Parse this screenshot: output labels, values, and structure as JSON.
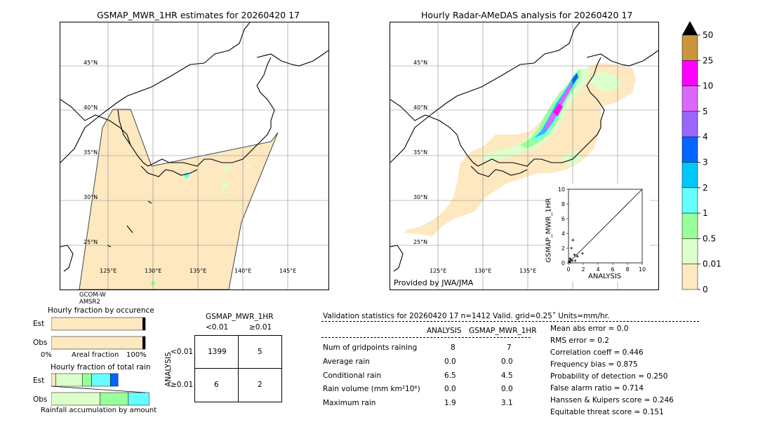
{
  "left_map": {
    "title": "GSMAP_MWR_1HR estimates for 20260420 17",
    "lat_labels": [
      "45°N",
      "40°N",
      "35°N",
      "30°N",
      "25°N"
    ],
    "lon_labels": [
      "125°E",
      "130°E",
      "135°E",
      "140°E",
      "145°E"
    ],
    "sensors": [
      "GCOM-W",
      "AMSR2"
    ]
  },
  "right_map": {
    "title": "Hourly Radar-AMeDAS analysis for 20260420 17",
    "lat_labels": [
      "45°N",
      "40°N",
      "35°N",
      "30°N",
      "25°N"
    ],
    "lon_labels": [
      "125°E",
      "130°E",
      "135°E"
    ],
    "credit": "Provided by JWA/JMA"
  },
  "colorbar": {
    "levels": [
      "50",
      "25",
      "10",
      "5",
      "4",
      "3",
      "2",
      "1",
      "0.5",
      "0.01",
      "0"
    ],
    "colors": [
      "#c8963c",
      "#ff00ff",
      "#dd66ff",
      "#9966ff",
      "#0066ff",
      "#00c8ff",
      "#66ffff",
      "#99ff99",
      "#ddffcc",
      "#fde8c0"
    ]
  },
  "scatter": {
    "xlabel": "ANALYSIS",
    "ylabel": "GSMAP_MWR_1HR",
    "xticks": [
      "0",
      "2",
      "4",
      "6",
      "8",
      "10"
    ],
    "yticks": [
      "0",
      "2",
      "4",
      "6",
      "8",
      "10"
    ]
  },
  "occurrence": {
    "title": "Hourly fraction by occurence",
    "row_labels": [
      "Est",
      "Obs"
    ],
    "axis_left": "0%",
    "axis_mid": "Areal fraction",
    "axis_right": "100%"
  },
  "total_rain": {
    "title": "Hourly fraction of total rain",
    "row_labels": [
      "Est",
      "Obs"
    ],
    "axis_mid": "Rainfall accumulation by amount"
  },
  "contingency": {
    "title": "GSMAP_MWR_1HR",
    "col_labels": [
      "<0.01",
      "≥0.01"
    ],
    "row_axis": "ANALYSIS",
    "row_labels": [
      "<0.01",
      "≥0.01"
    ],
    "cells": [
      "1399",
      "5",
      "6",
      "2"
    ]
  },
  "validation": {
    "header": "Validation statistics for 20260420 17  n=1412 Valid. grid=0.25˚ Units=mm/hr.",
    "col_analysis": "ANALYSIS",
    "col_gsmap": "GSMAP_MWR_1HR",
    "rows": [
      {
        "label": "Num of gridpoints raining",
        "a": "8",
        "g": "7"
      },
      {
        "label": "Average rain",
        "a": "0.0",
        "g": "0.0"
      },
      {
        "label": "Conditional rain",
        "a": "6.5",
        "g": "4.5"
      },
      {
        "label": "Rain volume (mm km²10⁶)",
        "a": "0.0",
        "g": "0.0"
      },
      {
        "label": "Maximum rain",
        "a": "1.9",
        "g": "3.1"
      }
    ],
    "scores": [
      "Mean abs error =    0.0",
      "RMS error =    0.2",
      "Correlation coeff =  0.446",
      "Frequency bias =  0.875",
      "Probability of detection =  0.250",
      "False alarm ratio =  0.714",
      "Hanssen & Kuipers score =  0.246",
      "Equitable threat score =  0.151"
    ]
  },
  "chart_data": [
    {
      "type": "scatter",
      "title": "",
      "xlabel": "ANALYSIS",
      "ylabel": "GSMAP_MWR_1HR",
      "xlim": [
        0,
        10
      ],
      "ylim": [
        0,
        10
      ],
      "points": [
        [
          0.1,
          0.2
        ],
        [
          0.2,
          0.1
        ],
        [
          0.3,
          0.4
        ],
        [
          0.5,
          0.3
        ],
        [
          0.8,
          1.1
        ],
        [
          1.2,
          0.9
        ],
        [
          0.4,
          2.0
        ],
        [
          0.6,
          3.1
        ],
        [
          1.9,
          1.3
        ],
        [
          0.2,
          0.6
        ],
        [
          0.9,
          0.3
        ]
      ]
    },
    {
      "type": "bar",
      "title": "Hourly fraction by occurence",
      "categories": [
        "Est",
        "Obs"
      ],
      "series": [
        {
          "values": [
            0.995,
            0.994
          ]
        },
        {
          "values": [
            0.005,
            0.006
          ]
        }
      ],
      "xlabel": "Areal fraction"
    },
    {
      "type": "bar",
      "title": "Hourly fraction of total rain",
      "categories": [
        "Est",
        "Obs"
      ],
      "series": [
        {
          "values": [
            0.05,
            0.0
          ]
        },
        {
          "values": [
            0.28,
            0.52
          ]
        },
        {
          "values": [
            0.1,
            0.3
          ]
        },
        {
          "values": [
            0.2,
            0.22
          ]
        },
        {
          "values": [
            0.08,
            0.0
          ]
        }
      ],
      "xlabel": "Rainfall accumulation by amount"
    }
  ]
}
